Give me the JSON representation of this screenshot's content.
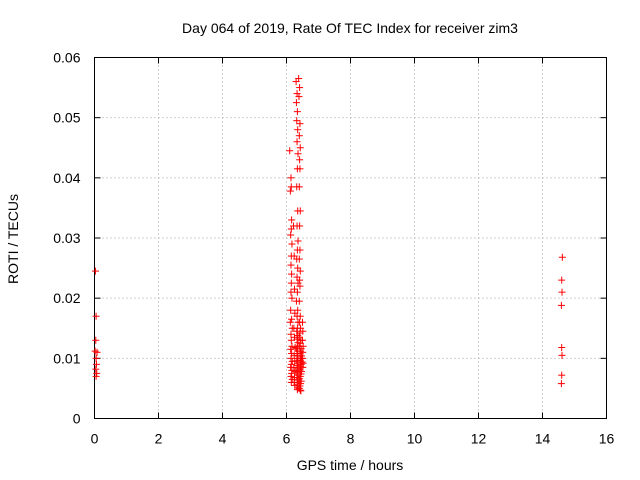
{
  "chart_data": {
    "type": "scatter",
    "title": "Day 064 of 2019, Rate Of TEC Index for receiver zim3",
    "xlabel": "GPS time / hours",
    "ylabel": "ROTI / TECUs",
    "xlim": [
      0,
      16
    ],
    "ylim": [
      0,
      0.06
    ],
    "x_ticks": [
      0,
      2,
      4,
      6,
      8,
      10,
      12,
      14,
      16
    ],
    "x_tick_labels": [
      "0",
      "2",
      "4",
      "6",
      "8",
      "10",
      "12",
      "14",
      "16"
    ],
    "y_ticks": [
      0,
      0.01,
      0.02,
      0.03,
      0.04,
      0.05,
      0.06
    ],
    "y_tick_labels": [
      "0",
      "0.01",
      "0.02",
      "0.03",
      "0.04",
      "0.05",
      "0.06"
    ],
    "grid": true,
    "marker": "+",
    "marker_color": "#ff0000",
    "series": [
      {
        "name": "ROTI",
        "points": [
          [
            0.03,
            0.0245
          ],
          [
            0.05,
            0.017
          ],
          [
            0.04,
            0.013
          ],
          [
            0.02,
            0.0112
          ],
          [
            0.08,
            0.011
          ],
          [
            0.05,
            0.01
          ],
          [
            0.06,
            0.009
          ],
          [
            0.04,
            0.0082
          ],
          [
            0.07,
            0.0075
          ],
          [
            0.05,
            0.007
          ],
          [
            6.1,
            0.0445
          ],
          [
            6.14,
            0.04
          ],
          [
            6.15,
            0.0385
          ],
          [
            6.12,
            0.0378
          ],
          [
            6.16,
            0.033
          ],
          [
            6.15,
            0.0315
          ],
          [
            6.13,
            0.0305
          ],
          [
            6.17,
            0.029
          ],
          [
            6.15,
            0.027
          ],
          [
            6.14,
            0.0255
          ],
          [
            6.16,
            0.024
          ],
          [
            6.15,
            0.0225
          ],
          [
            6.14,
            0.021
          ],
          [
            6.17,
            0.02
          ],
          [
            6.13,
            0.018
          ],
          [
            6.16,
            0.0165
          ],
          [
            6.12,
            0.016
          ],
          [
            6.18,
            0.015
          ],
          [
            6.14,
            0.014
          ],
          [
            6.15,
            0.013
          ],
          [
            6.17,
            0.012
          ],
          [
            6.13,
            0.0115
          ],
          [
            6.16,
            0.0108
          ],
          [
            6.14,
            0.01
          ],
          [
            6.18,
            0.0095
          ],
          [
            6.15,
            0.009
          ],
          [
            6.13,
            0.0085
          ],
          [
            6.17,
            0.008
          ],
          [
            6.16,
            0.0075
          ],
          [
            6.14,
            0.007
          ],
          [
            6.18,
            0.0065
          ],
          [
            6.15,
            0.006
          ],
          [
            6.22,
            0.032
          ],
          [
            6.24,
            0.027
          ],
          [
            6.25,
            0.0215
          ],
          [
            6.26,
            0.0175
          ],
          [
            6.23,
            0.015
          ],
          [
            6.25,
            0.0135
          ],
          [
            6.27,
            0.0118
          ],
          [
            6.24,
            0.0105
          ],
          [
            6.26,
            0.0095
          ],
          [
            6.23,
            0.0085
          ],
          [
            6.27,
            0.0078
          ],
          [
            6.25,
            0.0068
          ],
          [
            6.24,
            0.006
          ],
          [
            6.26,
            0.0055
          ],
          [
            6.3,
            0.056
          ],
          [
            6.33,
            0.054
          ],
          [
            6.31,
            0.0525
          ],
          [
            6.34,
            0.051
          ],
          [
            6.32,
            0.0495
          ],
          [
            6.35,
            0.048
          ],
          [
            6.33,
            0.046
          ],
          [
            6.36,
            0.044
          ],
          [
            6.34,
            0.0415
          ],
          [
            6.32,
            0.0385
          ],
          [
            6.35,
            0.0345
          ],
          [
            6.33,
            0.032
          ],
          [
            6.36,
            0.0295
          ],
          [
            6.34,
            0.028
          ],
          [
            6.32,
            0.0265
          ],
          [
            6.35,
            0.025
          ],
          [
            6.33,
            0.0235
          ],
          [
            6.36,
            0.0225
          ],
          [
            6.34,
            0.021
          ],
          [
            6.31,
            0.0195
          ],
          [
            6.35,
            0.018
          ],
          [
            6.33,
            0.017
          ],
          [
            6.36,
            0.016
          ],
          [
            6.34,
            0.015
          ],
          [
            6.32,
            0.0145
          ],
          [
            6.35,
            0.0138
          ],
          [
            6.33,
            0.0132
          ],
          [
            6.36,
            0.0126
          ],
          [
            6.34,
            0.012
          ],
          [
            6.31,
            0.0116
          ],
          [
            6.35,
            0.0112
          ],
          [
            6.33,
            0.0108
          ],
          [
            6.36,
            0.0104
          ],
          [
            6.34,
            0.01
          ],
          [
            6.32,
            0.0096
          ],
          [
            6.35,
            0.0092
          ],
          [
            6.33,
            0.0088
          ],
          [
            6.36,
            0.0084
          ],
          [
            6.34,
            0.008
          ],
          [
            6.32,
            0.0076
          ],
          [
            6.35,
            0.0072
          ],
          [
            6.33,
            0.0068
          ],
          [
            6.36,
            0.0064
          ],
          [
            6.34,
            0.006
          ],
          [
            6.33,
            0.0056
          ],
          [
            6.35,
            0.0052
          ],
          [
            6.34,
            0.0048
          ],
          [
            6.38,
            0.0565
          ],
          [
            6.41,
            0.055
          ],
          [
            6.39,
            0.0535
          ],
          [
            6.42,
            0.049
          ],
          [
            6.4,
            0.047
          ],
          [
            6.43,
            0.045
          ],
          [
            6.41,
            0.043
          ],
          [
            6.42,
            0.0415
          ],
          [
            6.4,
            0.0385
          ],
          [
            6.43,
            0.0345
          ],
          [
            6.41,
            0.032
          ],
          [
            6.42,
            0.028
          ],
          [
            6.4,
            0.0265
          ],
          [
            6.43,
            0.0245
          ],
          [
            6.41,
            0.023
          ],
          [
            6.42,
            0.022
          ],
          [
            6.4,
            0.0195
          ],
          [
            6.43,
            0.017
          ],
          [
            6.41,
            0.016
          ],
          [
            6.44,
            0.015
          ],
          [
            6.42,
            0.0142
          ],
          [
            6.4,
            0.0135
          ],
          [
            6.45,
            0.013
          ],
          [
            6.43,
            0.0125
          ],
          [
            6.41,
            0.012
          ],
          [
            6.46,
            0.0116
          ],
          [
            6.44,
            0.0112
          ],
          [
            6.42,
            0.0108
          ],
          [
            6.47,
            0.0104
          ],
          [
            6.45,
            0.01
          ],
          [
            6.43,
            0.0097
          ],
          [
            6.48,
            0.0094
          ],
          [
            6.46,
            0.009
          ],
          [
            6.44,
            0.0086
          ],
          [
            6.42,
            0.0082
          ],
          [
            6.47,
            0.0078
          ],
          [
            6.45,
            0.0074
          ],
          [
            6.43,
            0.007
          ],
          [
            6.41,
            0.0066
          ],
          [
            6.46,
            0.0062
          ],
          [
            6.44,
            0.0058
          ],
          [
            6.42,
            0.0054
          ],
          [
            6.4,
            0.005
          ],
          [
            6.45,
            0.0046
          ],
          [
            6.43,
            0.0047
          ],
          [
            6.5,
            0.016
          ],
          [
            6.51,
            0.0145
          ],
          [
            6.5,
            0.013
          ],
          [
            6.52,
            0.012
          ],
          [
            6.51,
            0.011
          ],
          [
            6.5,
            0.01
          ],
          [
            6.52,
            0.0092
          ],
          [
            6.51,
            0.0085
          ],
          [
            14.62,
            0.0268
          ],
          [
            14.6,
            0.023
          ],
          [
            14.61,
            0.021
          ],
          [
            14.59,
            0.0188
          ],
          [
            14.6,
            0.0118
          ],
          [
            14.61,
            0.0105
          ],
          [
            14.6,
            0.0072
          ],
          [
            14.59,
            0.0058
          ]
        ]
      }
    ]
  }
}
